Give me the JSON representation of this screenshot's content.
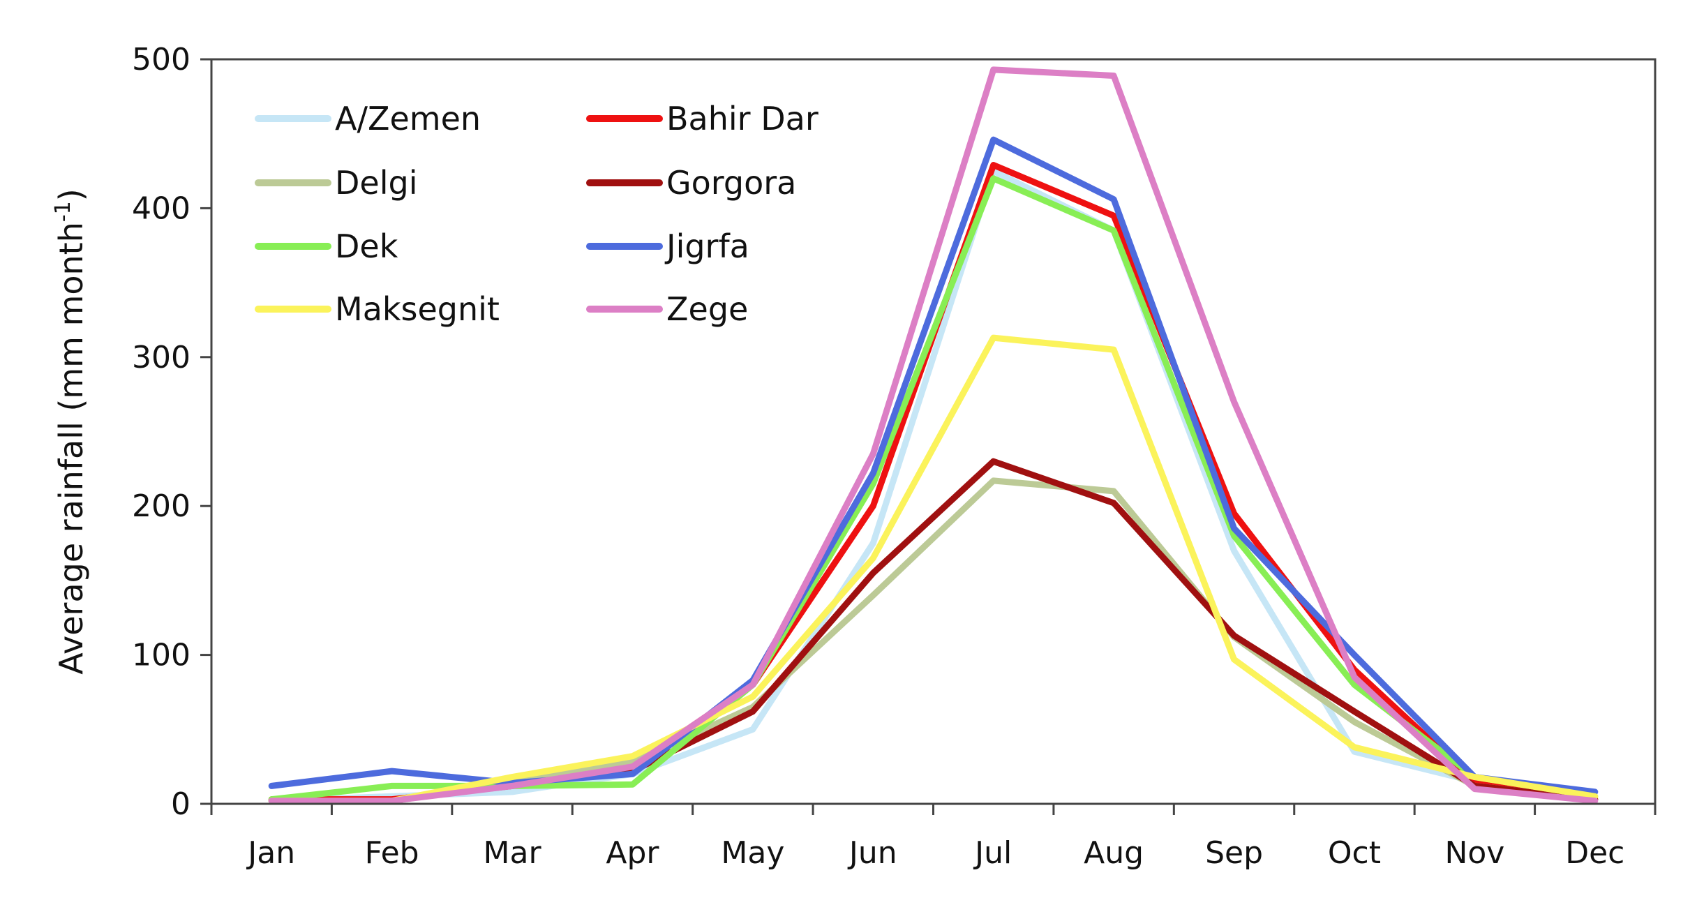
{
  "chart_data": {
    "type": "line",
    "title": "",
    "xlabel": "",
    "ylabel": "Average rainfall (mm month",
    "ylabel_superscript": "-1",
    "ylabel_close": ")",
    "ylim": [
      0,
      500
    ],
    "yticks": [
      0,
      100,
      200,
      300,
      400,
      500
    ],
    "ytick_labels": [
      "0",
      "100",
      "200",
      "300",
      "400",
      "500"
    ],
    "categories": [
      "Jan",
      "Feb",
      "Mar",
      "Apr",
      "May",
      "Jun",
      "Jul",
      "Aug",
      "Sep",
      "Oct",
      "Nov",
      "Dec"
    ],
    "grid": false,
    "legend_position": "top-left",
    "series": [
      {
        "name": "A/Zemen",
        "color": "#c6e6f6",
        "values": [
          2,
          5,
          8,
          20,
          50,
          175,
          425,
          385,
          170,
          35,
          15,
          3
        ]
      },
      {
        "name": "Bahir Dar",
        "color": "#ee1111",
        "values": [
          3,
          3,
          12,
          25,
          80,
          200,
          429,
          395,
          195,
          90,
          15,
          3
        ]
      },
      {
        "name": "Delgi",
        "color": "#bcca96",
        "values": [
          2,
          2,
          15,
          28,
          65,
          140,
          217,
          210,
          112,
          55,
          12,
          3
        ]
      },
      {
        "name": "Gorgora",
        "color": "#a01010",
        "values": [
          2,
          2,
          13,
          22,
          62,
          155,
          230,
          202,
          113,
          62,
          12,
          3
        ]
      },
      {
        "name": "Dek",
        "color": "#88ee55",
        "values": [
          3,
          12,
          12,
          13,
          80,
          215,
          420,
          385,
          180,
          80,
          18,
          5
        ]
      },
      {
        "name": "Jigrfa",
        "color": "#4d6bdd",
        "values": [
          12,
          22,
          14,
          20,
          83,
          222,
          446,
          406,
          185,
          100,
          18,
          8
        ]
      },
      {
        "name": "Maksegnit",
        "color": "#fbf35b",
        "values": [
          2,
          2,
          18,
          32,
          72,
          165,
          313,
          305,
          97,
          38,
          18,
          5
        ]
      },
      {
        "name": "Zege",
        "color": "#dc7fc5",
        "values": [
          2,
          2,
          12,
          25,
          80,
          235,
          493,
          489,
          270,
          85,
          10,
          2
        ]
      }
    ]
  }
}
